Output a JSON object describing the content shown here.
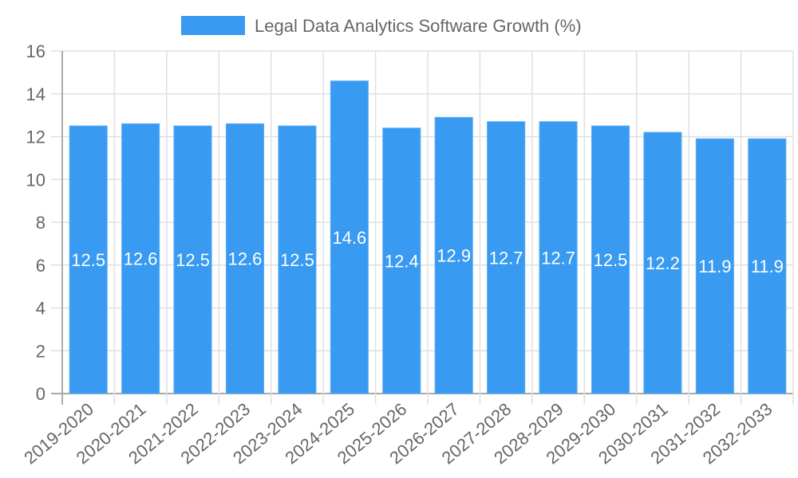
{
  "chart_data": {
    "type": "bar",
    "title": "",
    "legend": {
      "position": "top",
      "entries": [
        "Legal Data Analytics Software Growth (%)"
      ]
    },
    "series": [
      {
        "name": "Legal Data Analytics Software Growth (%)",
        "color": "#389af0",
        "values": [
          12.5,
          12.6,
          12.5,
          12.6,
          12.5,
          14.6,
          12.4,
          12.9,
          12.7,
          12.7,
          12.5,
          12.2,
          11.9,
          11.9
        ]
      }
    ],
    "categories": [
      "2019-2020",
      "2020-2021",
      "2021-2022",
      "2022-2023",
      "2023-2024",
      "2024-2025",
      "2025-2026",
      "2026-2027",
      "2027-2028",
      "2028-2029",
      "2029-2030",
      "2030-2031",
      "2031-2032",
      "2032-2033"
    ],
    "xlabel": "",
    "ylabel": "",
    "ylim": [
      0,
      16
    ],
    "yticks": [
      0,
      2,
      4,
      6,
      8,
      10,
      12,
      14,
      16
    ],
    "grid": true,
    "data_labels": true
  }
}
